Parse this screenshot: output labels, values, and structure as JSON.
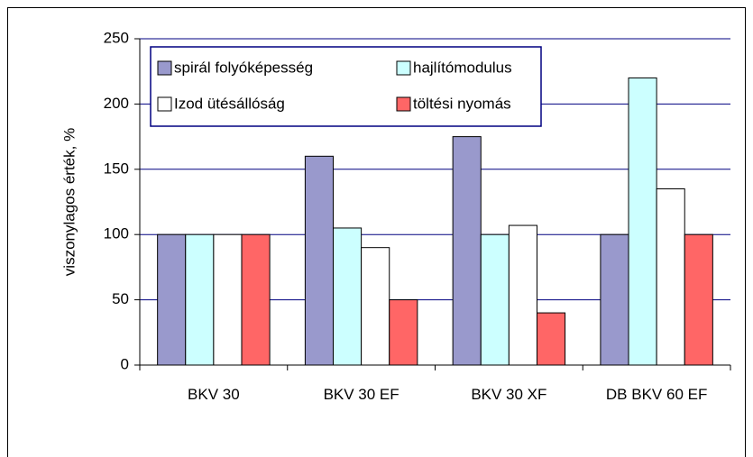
{
  "chart_data": {
    "type": "bar",
    "ylabel": "viszonylagos érték, %",
    "categories": [
      "BKV 30",
      "BKV 30 EF",
      "BKV 30 XF",
      "DB BKV 60 EF"
    ],
    "series": [
      {
        "name": "spirál folyóképesség",
        "color": "#9999cc",
        "values": [
          100,
          160,
          175,
          100
        ]
      },
      {
        "name": "hajlítómodulus",
        "color": "#ccffff",
        "values": [
          100,
          105,
          100,
          220
        ]
      },
      {
        "name": "Izod ütésállóság",
        "color": "#ffffff",
        "values": [
          100,
          90,
          107,
          135
        ]
      },
      {
        "name": "töltési nyomás",
        "color": "#ff6666",
        "values": [
          100,
          50,
          40,
          100
        ]
      }
    ],
    "ylim": [
      0,
      250
    ],
    "yticks": [
      0,
      50,
      100,
      150,
      200,
      250
    ],
    "grid": true,
    "legend": "top"
  }
}
